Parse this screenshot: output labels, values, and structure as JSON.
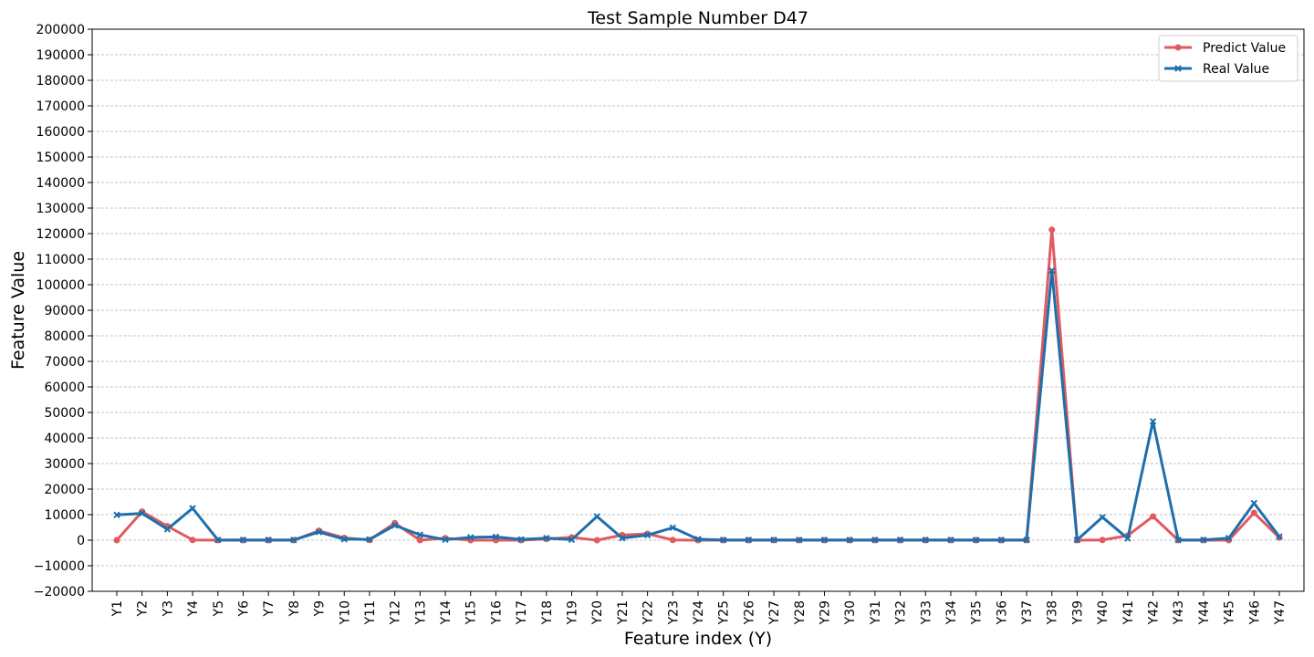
{
  "chart_data": {
    "type": "line",
    "title": "Test Sample Number D47",
    "xlabel": "Feature index (Y)",
    "ylabel": "Feature Value",
    "ylim": [
      -20000,
      200000
    ],
    "ytick_step": 10000,
    "grid": "y-dashed",
    "legend_position": "top-right",
    "categories": [
      "Y1",
      "Y2",
      "Y3",
      "Y4",
      "Y5",
      "Y6",
      "Y7",
      "Y8",
      "Y9",
      "Y10",
      "Y11",
      "Y12",
      "Y13",
      "Y14",
      "Y15",
      "Y16",
      "Y17",
      "Y18",
      "Y19",
      "Y20",
      "Y21",
      "Y22",
      "Y23",
      "Y24",
      "Y25",
      "Y26",
      "Y27",
      "Y28",
      "Y29",
      "Y30",
      "Y31",
      "Y32",
      "Y33",
      "Y34",
      "Y35",
      "Y36",
      "Y37",
      "Y38",
      "Y39",
      "Y40",
      "Y41",
      "Y42",
      "Y43",
      "Y44",
      "Y45",
      "Y46",
      "Y47"
    ],
    "series": [
      {
        "name": "Predict Value",
        "color": "#e05a60",
        "marker": "circle",
        "values": [
          0,
          11200,
          5500,
          100,
          0,
          0,
          0,
          0,
          3700,
          900,
          100,
          6700,
          0,
          800,
          0,
          0,
          0,
          500,
          1100,
          0,
          2000,
          2500,
          100,
          0,
          0,
          0,
          0,
          0,
          0,
          0,
          0,
          0,
          0,
          0,
          0,
          0,
          0,
          121500,
          0,
          100,
          1800,
          9300,
          0,
          0,
          0,
          10700,
          1000
        ]
      },
      {
        "name": "Real Value",
        "color": "#1f6fab",
        "marker": "x",
        "values": [
          9900,
          10500,
          4300,
          12500,
          100,
          100,
          100,
          100,
          3200,
          400,
          300,
          5800,
          2100,
          200,
          1100,
          1300,
          300,
          800,
          200,
          9300,
          800,
          2000,
          4900,
          400,
          100,
          100,
          100,
          100,
          100,
          100,
          100,
          100,
          100,
          100,
          100,
          100,
          100,
          105500,
          100,
          9000,
          700,
          46500,
          100,
          100,
          800,
          14500,
          1400
        ]
      }
    ]
  }
}
